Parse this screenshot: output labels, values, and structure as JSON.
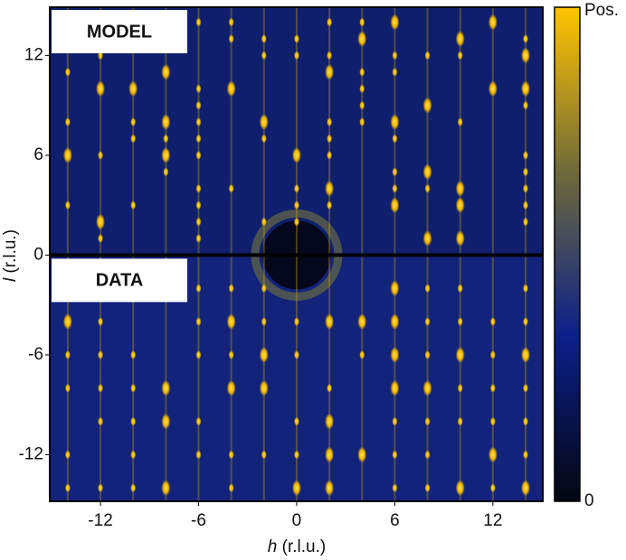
{
  "chart_data": {
    "type": "heatmap",
    "xlabel_var": "h",
    "xlabel_unit": "(r.l.u.)",
    "ylabel_var": "l",
    "ylabel_unit": "(r.l.u.)",
    "panels": [
      "MODEL",
      "DATA"
    ],
    "xlim": [
      -15.1,
      15.05
    ],
    "xticks": [
      -12,
      -6,
      0,
      6,
      12
    ],
    "ylim": [
      -14.8,
      14.9
    ],
    "yticks": [
      -12,
      -6,
      0,
      6,
      12
    ],
    "colorbar": {
      "max_label": "Pos.",
      "min_label": "0",
      "colors": [
        "#05070f",
        "#0c1f8a",
        "#6e6a3a",
        "#ffc400"
      ]
    }
  }
}
